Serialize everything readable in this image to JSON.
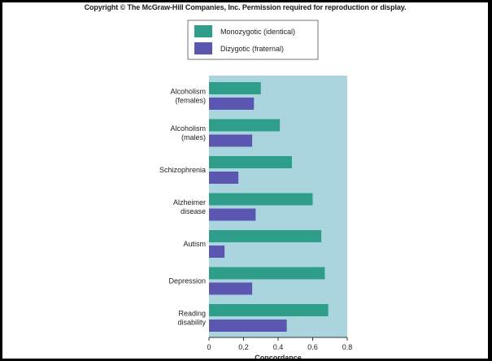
{
  "copyright": "Copyright © The McGraw-Hill Companies, Inc. Permission required for reproduction or display.",
  "colors": {
    "plot_background": "#abd5de",
    "monozygotic": "#2e9e8a",
    "dizygotic": "#5b57b1"
  },
  "chart_data": {
    "type": "bar",
    "orientation": "horizontal",
    "title": "",
    "xlabel": "Concordance",
    "ylabel": "",
    "xlim": [
      0,
      0.8
    ],
    "xticks": [
      "0",
      "0.2",
      "0.4",
      "0.6",
      "0.8"
    ],
    "legend_position": "top",
    "categories": [
      [
        "Alcoholism",
        "(females)"
      ],
      [
        "Alcoholism",
        "(males)"
      ],
      [
        "Schizophrenia"
      ],
      [
        "Alzheimer",
        "disease"
      ],
      [
        "Autism"
      ],
      [
        "Depression"
      ],
      [
        "Reading",
        "disability"
      ]
    ],
    "series": [
      {
        "name": "Monozygotic (identical)",
        "values": [
          0.3,
          0.41,
          0.48,
          0.6,
          0.65,
          0.67,
          0.69
        ]
      },
      {
        "name": "Dizygotic (fraternal)",
        "values": [
          0.26,
          0.25,
          0.17,
          0.27,
          0.09,
          0.25,
          0.45
        ]
      }
    ]
  }
}
